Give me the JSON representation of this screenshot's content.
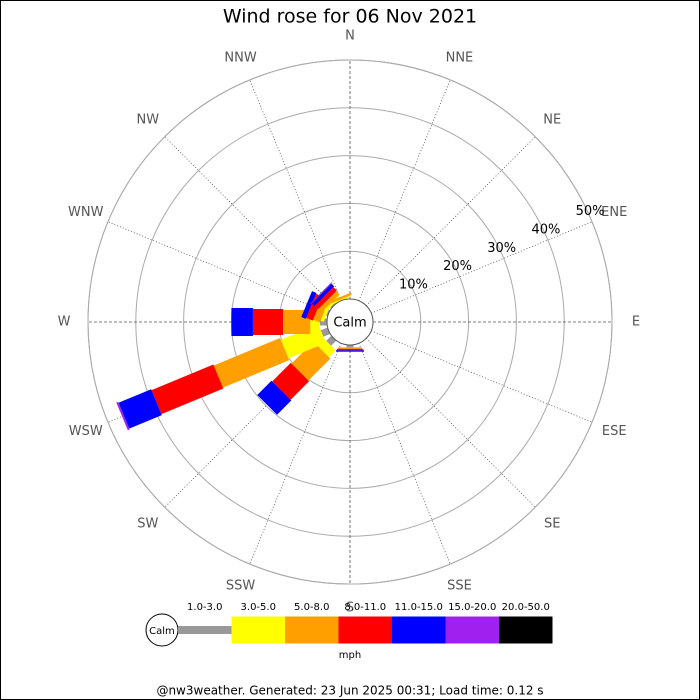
{
  "chart_data": {
    "type": "wind-rose",
    "title": "Wind rose for 06 Nov 2021",
    "categories": [
      "N",
      "NNE",
      "NE",
      "ENE",
      "E",
      "ESE",
      "SE",
      "SSE",
      "S",
      "SSW",
      "SW",
      "WSW",
      "W",
      "WNW",
      "NW",
      "NNW"
    ],
    "calm_label": "Calm",
    "rlim": [
      0,
      50
    ],
    "rticks": [
      {
        "value": 10,
        "label": "10%"
      },
      {
        "value": 20,
        "label": "20%"
      },
      {
        "value": 30,
        "label": "30%"
      },
      {
        "value": 40,
        "label": "40%"
      },
      {
        "value": 50,
        "label": "50%"
      }
    ],
    "series": [
      {
        "name": "1.0-3.0",
        "color": "#999999",
        "values": [
          0,
          0,
          0,
          0,
          0,
          0,
          0,
          0,
          0.5,
          0,
          1.5,
          1.5,
          1.5,
          0.3,
          0.3,
          0
        ]
      },
      {
        "name": "3.0-5.0",
        "color": "#ffff00",
        "values": [
          0,
          0,
          0,
          0,
          0,
          0,
          0,
          0,
          0,
          0,
          2,
          8.5,
          2,
          0.7,
          0.5,
          0.3
        ]
      },
      {
        "name": "5.0-8.0",
        "color": "#ffa000",
        "values": [
          0,
          0,
          0,
          0,
          0,
          0,
          0,
          0,
          0.3,
          0,
          6.5,
          15,
          5.7,
          1.5,
          1,
          0.5
        ]
      },
      {
        "name": "8.0-11.0",
        "color": "#ff0000",
        "values": [
          0,
          0,
          0,
          0,
          0,
          0,
          0,
          0,
          0.3,
          0,
          5.5,
          14,
          6.3,
          1.5,
          1,
          0
        ]
      },
      {
        "name": "11.0-15.0",
        "color": "#0000ff",
        "values": [
          0,
          0,
          0,
          0,
          0,
          0,
          0,
          0,
          0.3,
          0,
          4.2,
          7.4,
          4.5,
          1,
          0.8,
          0
        ]
      },
      {
        "name": "15.0-20.0",
        "color": "#a020f0",
        "values": [
          0,
          0,
          0,
          0,
          0,
          0,
          0,
          0,
          0,
          0,
          0,
          0.4,
          0,
          0,
          0.2,
          0
        ]
      },
      {
        "name": "20.0-50.0",
        "color": "#000000",
        "values": [
          0,
          0,
          0,
          0,
          0,
          0,
          0,
          0,
          0,
          0,
          0,
          0,
          0,
          0,
          0,
          0
        ]
      }
    ],
    "unit": "mph",
    "footer": "@nw3weather. Generated: 23 Jun 2025 00:31; Load time: 0.12 s"
  }
}
